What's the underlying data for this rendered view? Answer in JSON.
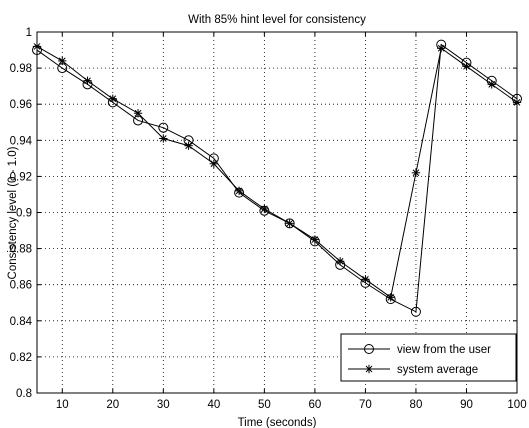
{
  "chart_data": {
    "type": "line",
    "title": "With 85% hint level for consistency",
    "xlabel": "Time (seconds)",
    "ylabel": "Consistency level (0 - 1.0)",
    "xlim": [
      5,
      100
    ],
    "ylim": [
      0.8,
      1.0
    ],
    "x_ticks": [
      10,
      20,
      30,
      40,
      50,
      60,
      70,
      80,
      90,
      100
    ],
    "y_ticks": [
      0.8,
      0.82,
      0.84,
      0.86,
      0.88,
      0.9,
      0.92,
      0.94,
      0.96,
      0.98,
      1
    ],
    "x_tick_labels": [
      "10",
      "20",
      "30",
      "40",
      "50",
      "60",
      "70",
      "80",
      "90",
      "100"
    ],
    "y_tick_labels": [
      "0.8",
      "0.82",
      "0.84",
      "0.86",
      "0.88",
      "0.9",
      "0.92",
      "0.94",
      "0.96",
      "0.98",
      "1"
    ],
    "grid": true,
    "legend_position": "bottom-right",
    "series": [
      {
        "name": "view from the user",
        "marker": "circle",
        "color": "#000000",
        "x": [
          5,
          10,
          15,
          20,
          25,
          30,
          35,
          40,
          45,
          50,
          55,
          60,
          65,
          70,
          75,
          80,
          85,
          90,
          95,
          100
        ],
        "y": [
          0.99,
          0.98,
          0.971,
          0.961,
          0.951,
          0.947,
          0.94,
          0.93,
          0.911,
          0.901,
          0.894,
          0.884,
          0.871,
          0.861,
          0.852,
          0.845,
          0.993,
          0.983,
          0.973,
          0.963
        ]
      },
      {
        "name": "system average",
        "marker": "star",
        "color": "#000000",
        "x": [
          5,
          10,
          15,
          20,
          25,
          30,
          35,
          40,
          45,
          50,
          55,
          60,
          65,
          70,
          75,
          80,
          85,
          90,
          95,
          100
        ],
        "y": [
          0.992,
          0.984,
          0.973,
          0.963,
          0.955,
          0.941,
          0.937,
          0.927,
          0.912,
          0.902,
          0.894,
          0.885,
          0.873,
          0.863,
          0.853,
          0.922,
          0.991,
          0.981,
          0.971,
          0.961
        ]
      }
    ]
  }
}
